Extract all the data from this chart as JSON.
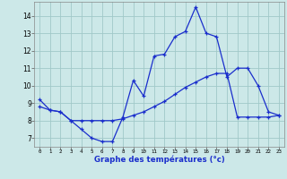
{
  "line1_x": [
    0,
    1,
    2,
    3,
    4,
    5,
    6,
    7,
    8,
    9,
    10,
    11,
    12,
    13,
    14,
    15,
    16,
    17,
    18,
    19,
    20,
    21,
    22,
    23
  ],
  "line1_y": [
    9.2,
    8.6,
    8.5,
    8.0,
    7.5,
    7.0,
    6.8,
    6.8,
    8.2,
    10.3,
    9.4,
    11.7,
    11.8,
    12.8,
    13.1,
    14.5,
    13.0,
    12.8,
    10.5,
    11.0,
    11.0,
    10.0,
    8.5,
    8.3
  ],
  "line2_x": [
    0,
    1,
    2,
    3,
    4,
    5,
    6,
    7,
    8,
    9,
    10,
    11,
    12,
    13,
    14,
    15,
    16,
    17,
    18,
    19,
    20,
    21,
    22,
    23
  ],
  "line2_y": [
    8.8,
    8.6,
    8.5,
    8.0,
    8.0,
    8.0,
    8.0,
    8.0,
    8.1,
    8.3,
    8.5,
    8.8,
    9.1,
    9.5,
    9.9,
    10.2,
    10.5,
    10.7,
    10.7,
    8.2,
    8.2,
    8.2,
    8.2,
    8.3
  ],
  "line_color": "#1a2ecc",
  "bg_color": "#cce8e8",
  "grid_color": "#a0c8c8",
  "xlabel": "Graphe des températures (°c)",
  "yticks": [
    7,
    8,
    9,
    10,
    11,
    12,
    13,
    14
  ],
  "xticks": [
    0,
    1,
    2,
    3,
    4,
    5,
    6,
    7,
    8,
    9,
    10,
    11,
    12,
    13,
    14,
    15,
    16,
    17,
    18,
    19,
    20,
    21,
    22,
    23
  ],
  "xlim": [
    -0.5,
    23.5
  ],
  "ylim": [
    6.5,
    14.8
  ]
}
